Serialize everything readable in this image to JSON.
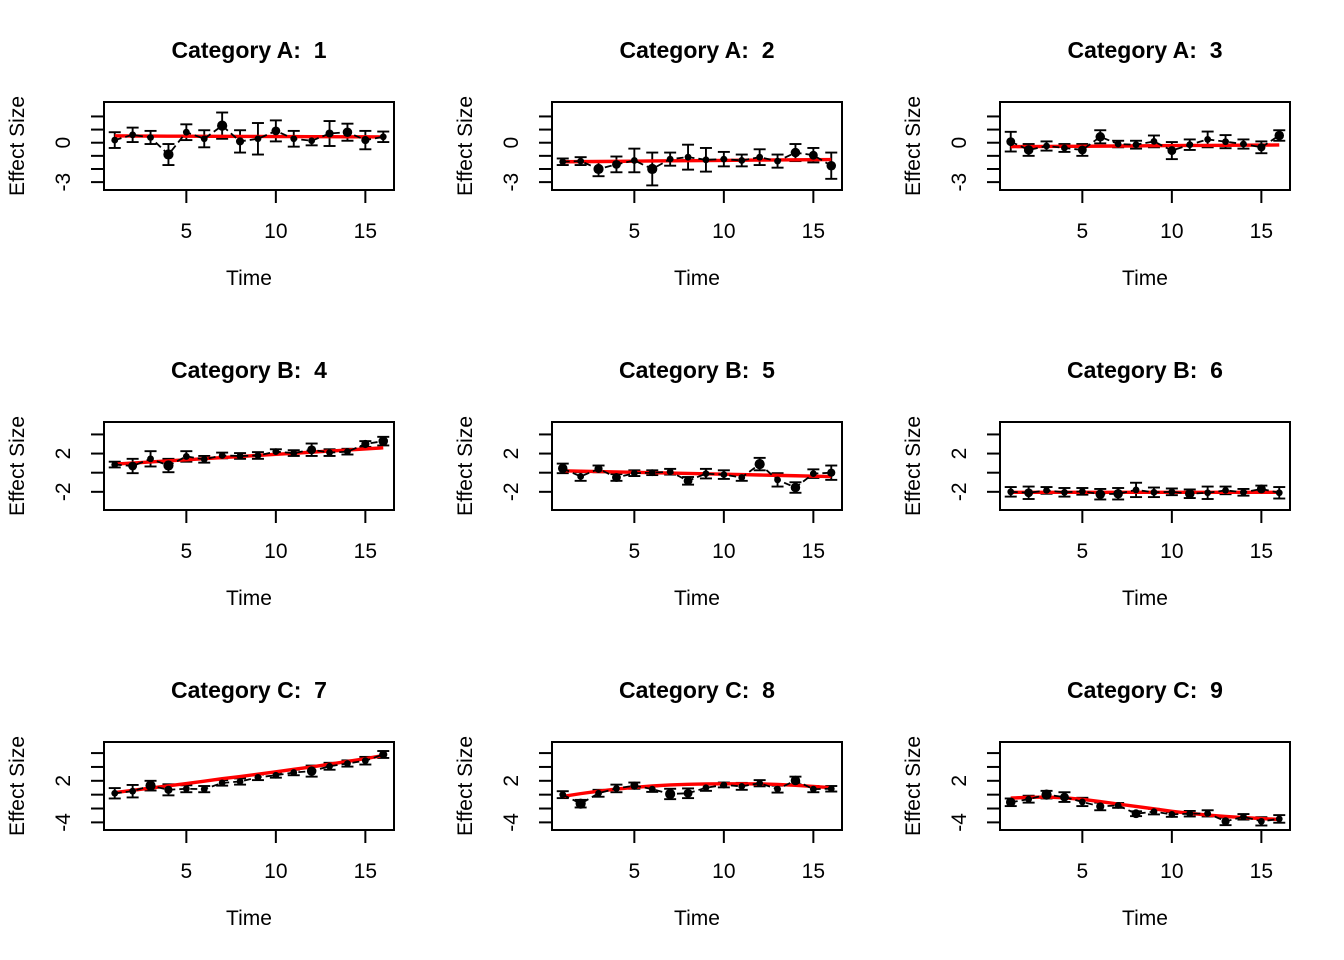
{
  "figure": {
    "background": "#FFFFFF",
    "point_color": "#000000",
    "errorbar_color": "#000000",
    "connector_color": "#000000",
    "trend_color": "#FF0000",
    "grid_layout": "3x3",
    "row_categories": [
      "Category A",
      "Category B",
      "Category C"
    ]
  },
  "chart_data": [
    {
      "type": "scatter",
      "title": "Category A:  1",
      "xlabel": "Time",
      "ylabel": "Effect Size",
      "x": [
        1,
        2,
        3,
        4,
        5,
        6,
        7,
        8,
        9,
        10,
        11,
        12,
        13,
        14,
        15,
        16
      ],
      "y": [
        0.2,
        0.6,
        0.4,
        -0.9,
        0.8,
        0.3,
        1.3,
        0.1,
        0.3,
        0.9,
        0.3,
        0.15,
        0.7,
        0.8,
        0.2,
        0.45
      ],
      "err": [
        0.6,
        0.55,
        0.5,
        0.8,
        0.6,
        0.65,
        1.0,
        0.85,
        1.2,
        0.8,
        0.6,
        0.35,
        0.95,
        0.65,
        0.7,
        0.4
      ],
      "point_size": [
        1,
        1,
        1,
        1.5,
        1,
        1,
        1.5,
        1.2,
        1,
        1.3,
        1,
        1,
        1.2,
        1.4,
        1.2,
        1
      ],
      "trend": [
        0.52,
        0.51,
        0.51,
        0.5,
        0.5,
        0.49,
        0.49,
        0.48,
        0.48,
        0.47,
        0.47,
        0.46,
        0.46,
        0.45,
        0.45,
        0.44
      ],
      "xlim": [
        0.4,
        16.6
      ],
      "ylim": [
        -3.6,
        3.1
      ],
      "xticks": [
        5,
        10,
        15
      ],
      "yticks": [
        2,
        1,
        0,
        -1,
        -2,
        -3
      ],
      "ytick_labels": [
        "",
        "",
        "0",
        "",
        "",
        "-3"
      ],
      "legend": "none",
      "grid": "off"
    },
    {
      "type": "scatter",
      "title": "Category A:  2",
      "xlabel": "Time",
      "ylabel": "Effect Size",
      "x": [
        1,
        2,
        3,
        4,
        5,
        6,
        7,
        8,
        9,
        10,
        11,
        12,
        13,
        14,
        15,
        16
      ],
      "y": [
        -1.45,
        -1.4,
        -2.0,
        -1.65,
        -1.35,
        -2.0,
        -1.25,
        -1.1,
        -1.3,
        -1.25,
        -1.35,
        -1.1,
        -1.4,
        -0.75,
        -0.95,
        -1.75
      ],
      "err": [
        0.25,
        0.3,
        0.55,
        0.6,
        0.9,
        1.25,
        0.5,
        0.95,
        0.9,
        0.55,
        0.45,
        0.6,
        0.5,
        0.65,
        0.55,
        1.0
      ],
      "point_size": [
        1,
        1,
        1.5,
        1.3,
        1,
        1.5,
        1,
        1,
        1,
        1,
        1,
        1,
        1,
        1.4,
        1.3,
        1.4
      ],
      "trend": [
        -1.45,
        -1.44,
        -1.43,
        -1.42,
        -1.41,
        -1.39,
        -1.38,
        -1.37,
        -1.36,
        -1.35,
        -1.33,
        -1.32,
        -1.31,
        -1.3,
        -1.29,
        -1.28
      ],
      "xlim": [
        0.4,
        16.6
      ],
      "ylim": [
        -3.6,
        3.1
      ],
      "xticks": [
        5,
        10,
        15
      ],
      "yticks": [
        2,
        1,
        0,
        -1,
        -2,
        -3
      ],
      "ytick_labels": [
        "",
        "",
        "0",
        "",
        "",
        "-3"
      ],
      "legend": "none",
      "grid": "off"
    },
    {
      "type": "scatter",
      "title": "Category A:  3",
      "xlabel": "Time",
      "ylabel": "Effect Size",
      "x": [
        1,
        2,
        3,
        4,
        5,
        6,
        7,
        8,
        9,
        10,
        11,
        12,
        13,
        14,
        15,
        16
      ],
      "y": [
        0.08,
        -0.55,
        -0.25,
        -0.4,
        -0.55,
        0.45,
        -0.1,
        -0.15,
        0.1,
        -0.6,
        -0.15,
        0.25,
        0.08,
        -0.1,
        -0.35,
        0.55
      ],
      "err": [
        0.75,
        0.45,
        0.35,
        0.3,
        0.45,
        0.5,
        0.25,
        0.3,
        0.45,
        0.65,
        0.4,
        0.6,
        0.5,
        0.35,
        0.45,
        0.4
      ],
      "point_size": [
        1.3,
        1.4,
        1,
        1,
        1.3,
        1.4,
        1,
        1,
        1,
        1.3,
        1,
        1,
        1,
        1,
        1.2,
        1.4
      ],
      "trend": [
        -0.3,
        -0.29,
        -0.28,
        -0.27,
        -0.27,
        -0.26,
        -0.25,
        -0.24,
        -0.23,
        -0.22,
        -0.21,
        -0.21,
        -0.2,
        -0.19,
        -0.18,
        -0.17
      ],
      "xlim": [
        0.4,
        16.6
      ],
      "ylim": [
        -3.6,
        3.1
      ],
      "xticks": [
        5,
        10,
        15
      ],
      "yticks": [
        2,
        1,
        0,
        -1,
        -2,
        -3
      ],
      "ytick_labels": [
        "",
        "",
        "0",
        "",
        "",
        "-3"
      ],
      "legend": "none",
      "grid": "off"
    },
    {
      "type": "scatter",
      "title": "Category B:  4",
      "xlabel": "Time",
      "ylabel": "Effect Size",
      "x": [
        1,
        2,
        3,
        4,
        5,
        6,
        7,
        8,
        9,
        10,
        11,
        12,
        13,
        14,
        15,
        16
      ],
      "y": [
        0.85,
        0.7,
        1.45,
        0.75,
        1.7,
        1.4,
        1.8,
        1.75,
        1.8,
        2.2,
        2.05,
        2.4,
        2.1,
        2.2,
        3.0,
        3.3
      ],
      "err": [
        0.3,
        0.75,
        0.8,
        0.7,
        0.55,
        0.35,
        0.3,
        0.3,
        0.35,
        0.25,
        0.3,
        0.65,
        0.35,
        0.3,
        0.3,
        0.45
      ],
      "point_size": [
        1,
        1.3,
        1,
        1.5,
        1,
        1,
        1,
        1,
        1,
        1,
        1,
        1.3,
        1,
        1,
        1.2,
        1.4
      ],
      "trend": [
        0.9,
        1.01,
        1.13,
        1.24,
        1.35,
        1.47,
        1.58,
        1.69,
        1.81,
        1.92,
        2.03,
        2.15,
        2.26,
        2.37,
        2.49,
        2.6
      ],
      "xlim": [
        0.4,
        16.6
      ],
      "ylim": [
        -3.9,
        5.3
      ],
      "xticks": [
        5,
        10,
        15
      ],
      "yticks": [
        4,
        2,
        0,
        -2
      ],
      "ytick_labels": [
        "",
        "2",
        "",
        "-2"
      ],
      "legend": "none",
      "grid": "off"
    },
    {
      "type": "scatter",
      "title": "Category B:  5",
      "xlabel": "Time",
      "ylabel": "Effect Size",
      "x": [
        1,
        2,
        3,
        4,
        5,
        6,
        7,
        8,
        9,
        10,
        11,
        12,
        13,
        14,
        15,
        16
      ],
      "y": [
        0.45,
        -0.4,
        0.4,
        -0.5,
        -0.05,
        0.0,
        0.1,
        -0.85,
        -0.1,
        -0.2,
        -0.5,
        0.9,
        -0.75,
        -1.55,
        -0.1,
        0.0
      ],
      "err": [
        0.5,
        0.45,
        0.35,
        0.35,
        0.3,
        0.25,
        0.3,
        0.4,
        0.5,
        0.45,
        0.35,
        0.65,
        0.7,
        0.55,
        0.45,
        0.75
      ],
      "point_size": [
        1.4,
        1,
        1.2,
        1.3,
        1,
        1,
        1,
        1.3,
        1,
        1,
        1,
        1.5,
        1,
        1.4,
        1,
        1.2
      ],
      "trend": [
        0.2,
        0.16,
        0.12,
        0.08,
        0.04,
        0.0,
        -0.04,
        -0.08,
        -0.12,
        -0.16,
        -0.2,
        -0.24,
        -0.28,
        -0.32,
        -0.36,
        -0.4
      ],
      "xlim": [
        0.4,
        16.6
      ],
      "ylim": [
        -3.9,
        5.3
      ],
      "xticks": [
        5,
        10,
        15
      ],
      "yticks": [
        4,
        2,
        0,
        -2
      ],
      "ytick_labels": [
        "",
        "2",
        "",
        "-2"
      ],
      "legend": "none",
      "grid": "off"
    },
    {
      "type": "scatter",
      "title": "Category B:  6",
      "xlabel": "Time",
      "ylabel": "Effect Size",
      "x": [
        1,
        2,
        3,
        4,
        5,
        6,
        7,
        8,
        9,
        10,
        11,
        12,
        13,
        14,
        15,
        16
      ],
      "y": [
        -2.0,
        -2.1,
        -1.85,
        -2.05,
        -1.95,
        -2.25,
        -2.2,
        -1.8,
        -2.05,
        -2.0,
        -2.2,
        -2.1,
        -1.85,
        -2.05,
        -1.7,
        -2.1
      ],
      "err": [
        0.5,
        0.65,
        0.35,
        0.45,
        0.35,
        0.55,
        0.6,
        0.75,
        0.5,
        0.35,
        0.45,
        0.65,
        0.4,
        0.35,
        0.35,
        0.6
      ],
      "point_size": [
        1,
        1.3,
        1,
        1,
        1,
        1.4,
        1.4,
        1,
        1,
        1,
        1.4,
        1,
        1,
        1,
        1.3,
        1
      ],
      "trend": [
        -2.05,
        -2.05,
        -2.05,
        -2.05,
        -2.05,
        -2.05,
        -2.05,
        -2.05,
        -2.05,
        -2.05,
        -2.05,
        -2.05,
        -2.05,
        -2.05,
        -2.05,
        -2.05
      ],
      "xlim": [
        0.4,
        16.6
      ],
      "ylim": [
        -3.9,
        5.3
      ],
      "xticks": [
        5,
        10,
        15
      ],
      "yticks": [
        4,
        2,
        0,
        -2
      ],
      "ytick_labels": [
        "",
        "2",
        "",
        "-2"
      ],
      "legend": "none",
      "grid": "off"
    },
    {
      "type": "scatter",
      "title": "Category C:  7",
      "xlabel": "Time",
      "ylabel": "Effect Size",
      "x": [
        1,
        2,
        3,
        4,
        5,
        6,
        7,
        8,
        9,
        10,
        11,
        12,
        13,
        14,
        15,
        16
      ],
      "y": [
        0.2,
        0.5,
        1.3,
        0.7,
        0.85,
        0.8,
        1.7,
        1.9,
        2.5,
        2.8,
        3.2,
        3.4,
        4.1,
        4.5,
        4.9,
        5.8
      ],
      "err": [
        0.75,
        0.9,
        0.7,
        0.8,
        0.5,
        0.45,
        0.4,
        0.45,
        0.4,
        0.35,
        0.4,
        0.8,
        0.5,
        0.45,
        0.55,
        0.5
      ],
      "point_size": [
        1,
        1,
        1.5,
        1.2,
        1,
        1,
        1,
        1,
        1,
        1,
        1,
        1.4,
        1,
        1,
        1,
        1.2
      ],
      "trend": [
        0.3,
        0.62,
        0.95,
        1.28,
        1.6,
        1.95,
        2.3,
        2.62,
        2.95,
        3.3,
        3.65,
        4.0,
        4.4,
        4.8,
        5.2,
        5.65
      ],
      "xlim": [
        0.4,
        16.6
      ],
      "ylim": [
        -5.1,
        7.6
      ],
      "xticks": [
        5,
        10,
        15
      ],
      "yticks": [
        6,
        4,
        2,
        0,
        -2,
        -4
      ],
      "ytick_labels": [
        "",
        "",
        "2",
        "",
        "",
        "-4"
      ],
      "legend": "none",
      "grid": "off"
    },
    {
      "type": "scatter",
      "title": "Category C:  8",
      "xlabel": "Time",
      "ylabel": "Effect Size",
      "x": [
        1,
        2,
        3,
        4,
        5,
        6,
        7,
        8,
        9,
        10,
        11,
        12,
        13,
        14,
        15,
        16
      ],
      "y": [
        0.0,
        -1.3,
        0.2,
        0.9,
        1.3,
        0.8,
        0.1,
        0.2,
        1.0,
        1.4,
        1.2,
        1.65,
        0.8,
        2.05,
        0.8,
        0.85
      ],
      "err": [
        0.5,
        0.55,
        0.5,
        0.55,
        0.45,
        0.4,
        0.75,
        0.7,
        0.45,
        0.35,
        0.5,
        0.45,
        0.5,
        0.55,
        0.45,
        0.4
      ],
      "point_size": [
        1,
        1.5,
        1,
        1,
        1.2,
        1,
        1.5,
        1.3,
        1,
        1,
        1,
        1,
        1,
        1.4,
        1,
        1
      ],
      "trend": [
        -0.25,
        0.15,
        0.5,
        0.8,
        1.05,
        1.25,
        1.4,
        1.5,
        1.55,
        1.57,
        1.57,
        1.55,
        1.48,
        1.35,
        1.18,
        1.0
      ],
      "xlim": [
        0.4,
        16.6
      ],
      "ylim": [
        -5.1,
        7.6
      ],
      "xticks": [
        5,
        10,
        15
      ],
      "yticks": [
        6,
        4,
        2,
        0,
        -2,
        -4
      ],
      "ytick_labels": [
        "",
        "",
        "2",
        "",
        "",
        "-4"
      ],
      "legend": "none",
      "grid": "off"
    },
    {
      "type": "scatter",
      "title": "Category C:  9",
      "xlabel": "Time",
      "ylabel": "Effect Size",
      "x": [
        1,
        2,
        3,
        4,
        5,
        6,
        7,
        8,
        9,
        10,
        11,
        12,
        13,
        14,
        15,
        16
      ],
      "y": [
        -1.1,
        -0.65,
        0.0,
        -0.35,
        -1.05,
        -1.7,
        -1.55,
        -2.75,
        -2.45,
        -2.85,
        -2.75,
        -2.7,
        -3.85,
        -3.2,
        -3.85,
        -3.5
      ],
      "err": [
        0.55,
        0.5,
        0.55,
        0.7,
        0.6,
        0.55,
        0.35,
        0.35,
        0.4,
        0.35,
        0.4,
        0.45,
        0.55,
        0.4,
        0.6,
        0.55
      ],
      "point_size": [
        1.4,
        1,
        1.5,
        1.3,
        1,
        1.2,
        1,
        1.3,
        1,
        1,
        1,
        1,
        1.2,
        1,
        1,
        1
      ],
      "trend": [
        -0.5,
        -0.38,
        -0.35,
        -0.45,
        -0.68,
        -1.0,
        -1.35,
        -1.7,
        -2.05,
        -2.4,
        -2.7,
        -2.95,
        -3.15,
        -3.3,
        -3.45,
        -3.58
      ],
      "xlim": [
        0.4,
        16.6
      ],
      "ylim": [
        -5.1,
        7.6
      ],
      "xticks": [
        5,
        10,
        15
      ],
      "yticks": [
        6,
        4,
        2,
        0,
        -2,
        -4
      ],
      "ytick_labels": [
        "",
        "",
        "2",
        "",
        "",
        "-4"
      ],
      "legend": "none",
      "grid": "off"
    }
  ]
}
